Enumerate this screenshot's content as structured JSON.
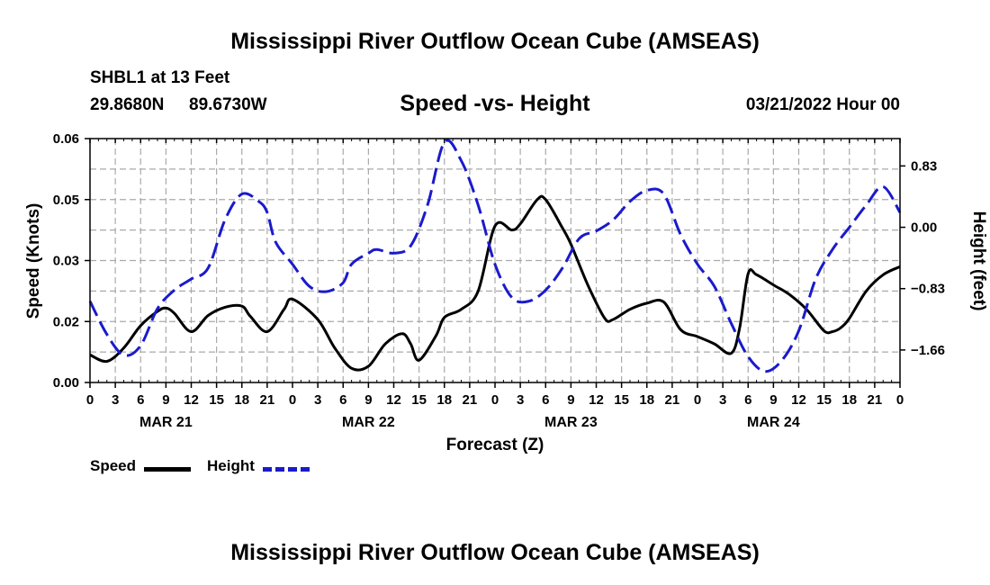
{
  "header": {
    "title": "Mississippi River Outflow Ocean Cube (AMSEAS)",
    "station": "SHBL1 at 13 Feet",
    "latitude": "29.8680N",
    "longitude": "89.6730W",
    "subtitle": "Speed -vs- Height",
    "datetime": "03/21/2022 Hour 00",
    "bottom_title": "Mississippi River Outflow Ocean Cube (AMSEAS)"
  },
  "legend": {
    "speed_label": "Speed",
    "height_label": "Height"
  },
  "chart_data": {
    "type": "line",
    "title": "Speed -vs- Height",
    "xlabel": "Forecast (Z)",
    "ylabel": "Speed (Knots)",
    "y2label": "Height (feet)",
    "x_range_hours": [
      0,
      96
    ],
    "x_tick_step_hours": 3,
    "x_tick_labels": [
      "0",
      "3",
      "6",
      "9",
      "12",
      "15",
      "18",
      "21",
      "0",
      "3",
      "6",
      "9",
      "12",
      "15",
      "18",
      "21",
      "0",
      "3",
      "6",
      "9",
      "12",
      "15",
      "18",
      "21",
      "0",
      "3",
      "6",
      "9",
      "12",
      "15",
      "18",
      "21",
      "0"
    ],
    "day_labels": [
      {
        "label": "MAR 21",
        "hour": 9
      },
      {
        "label": "MAR 22",
        "hour": 33
      },
      {
        "label": "MAR 23",
        "hour": 57
      },
      {
        "label": "MAR 24",
        "hour": 81
      }
    ],
    "ylim": [
      0,
      0.06
    ],
    "y_ticks": [
      0,
      0.015,
      0.03,
      0.045,
      0.06
    ],
    "y_tick_labels": [
      "0.00",
      "0.02",
      "0.03",
      "0.05",
      "0.06"
    ],
    "y2lim": [
      -2.1,
      1.2
    ],
    "y2_ticks": [
      -1.66,
      -0.83,
      0,
      0.83
    ],
    "y2_tick_labels": [
      "−1.66",
      "−0.83",
      "0.00",
      "0.83"
    ],
    "grid": true,
    "legend_position": "bottom-left",
    "series": [
      {
        "name": "Speed",
        "axis": "left",
        "color": "#000000",
        "style": "solid",
        "x": [
          0,
          2,
          4,
          6,
          8,
          9,
          10,
          12,
          14,
          16,
          18,
          19,
          21,
          23,
          24,
          27,
          29,
          31,
          33,
          35,
          37,
          38,
          39,
          41,
          42,
          44,
          46,
          48,
          50,
          51,
          53,
          54,
          56,
          57,
          59,
          61,
          62,
          64,
          66,
          68,
          70,
          72,
          74,
          76,
          77,
          78,
          79,
          81,
          83,
          85,
          87,
          88,
          89,
          90,
          92,
          94,
          96
        ],
        "values": [
          0.0068,
          0.0052,
          0.0085,
          0.014,
          0.0175,
          0.0183,
          0.017,
          0.0125,
          0.0165,
          0.0185,
          0.0188,
          0.0163,
          0.0125,
          0.018,
          0.0205,
          0.0155,
          0.0085,
          0.0035,
          0.004,
          0.0095,
          0.012,
          0.0095,
          0.0055,
          0.0115,
          0.016,
          0.018,
          0.0225,
          0.0385,
          0.0375,
          0.039,
          0.045,
          0.045,
          0.038,
          0.034,
          0.024,
          0.0158,
          0.0155,
          0.018,
          0.0195,
          0.0198,
          0.013,
          0.0113,
          0.0095,
          0.0072,
          0.0135,
          0.0268,
          0.0265,
          0.024,
          0.0215,
          0.0178,
          0.0127,
          0.0125,
          0.0135,
          0.0158,
          0.0225,
          0.0265,
          0.0285
        ]
      },
      {
        "name": "Height",
        "axis": "right",
        "color": "#1a1acc",
        "style": "dashed",
        "x": [
          0,
          2,
          4,
          6,
          8,
          10,
          12,
          14,
          16,
          18,
          20,
          21,
          22,
          24,
          26,
          28,
          30,
          31,
          33,
          34,
          36,
          38,
          40,
          42,
          44,
          46,
          48,
          50,
          52,
          54,
          56,
          58,
          60,
          62,
          64,
          66,
          68,
          70,
          72,
          74,
          76,
          78,
          80,
          82,
          84,
          86,
          88,
          90,
          92,
          94,
          96
        ],
        "values": [
          -1.0,
          -1.45,
          -1.73,
          -1.6,
          -1.1,
          -0.85,
          -0.7,
          -0.55,
          0.1,
          0.45,
          0.35,
          0.2,
          -0.2,
          -0.5,
          -0.8,
          -0.87,
          -0.75,
          -0.5,
          -0.35,
          -0.3,
          -0.35,
          -0.25,
          0.3,
          1.15,
          0.9,
          0.3,
          -0.5,
          -0.95,
          -1.0,
          -0.85,
          -0.55,
          -0.15,
          -0.05,
          0.1,
          0.35,
          0.5,
          0.45,
          -0.1,
          -0.5,
          -0.8,
          -1.3,
          -1.75,
          -1.95,
          -1.8,
          -1.4,
          -0.7,
          -0.3,
          0.0,
          0.3,
          0.55,
          0.2
        ]
      }
    ]
  }
}
